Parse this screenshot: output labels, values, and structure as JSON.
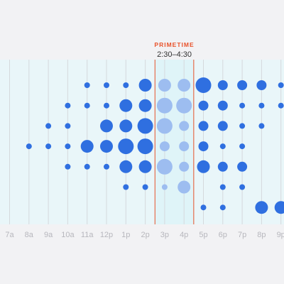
{
  "chart_data": {
    "type": "scatter",
    "title": "",
    "categories": [
      "7a",
      "8a",
      "9a",
      "10a",
      "11a",
      "12p",
      "1p",
      "2p",
      "3p",
      "4p",
      "5p",
      "6p",
      "7p",
      "8p",
      "9p"
    ],
    "rows": 7,
    "highlight": {
      "label": "PRIMETIME",
      "range": "2:30–4:30",
      "from": 7.5,
      "to": 9.5
    },
    "colors": {
      "dot": "#2f6fe0",
      "dot_primetime": "#9dbdf0",
      "highlight_line": "#e8522a",
      "highlight_fill": "#dff4f8",
      "grid": "#d5d9dd",
      "plot_fill": "#e9f6f9"
    },
    "points": [
      {
        "x": 4,
        "y": 0,
        "v": 2
      },
      {
        "x": 5,
        "y": 0,
        "v": 2
      },
      {
        "x": 6,
        "y": 0,
        "v": 2
      },
      {
        "x": 7,
        "y": 0,
        "v": 4
      },
      {
        "x": 8,
        "y": 0,
        "v": 4
      },
      {
        "x": 9,
        "y": 0,
        "v": 4
      },
      {
        "x": 10,
        "y": 0,
        "v": 5
      },
      {
        "x": 11,
        "y": 0,
        "v": 3
      },
      {
        "x": 12,
        "y": 0,
        "v": 3
      },
      {
        "x": 13,
        "y": 0,
        "v": 3
      },
      {
        "x": 14,
        "y": 0,
        "v": 2
      },
      {
        "x": 3,
        "y": 1,
        "v": 2
      },
      {
        "x": 4,
        "y": 1,
        "v": 2
      },
      {
        "x": 5,
        "y": 1,
        "v": 2
      },
      {
        "x": 6,
        "y": 1,
        "v": 4
      },
      {
        "x": 7,
        "y": 1,
        "v": 4
      },
      {
        "x": 8,
        "y": 1,
        "v": 5
      },
      {
        "x": 9,
        "y": 1,
        "v": 5
      },
      {
        "x": 10,
        "y": 1,
        "v": 3
      },
      {
        "x": 11,
        "y": 1,
        "v": 3
      },
      {
        "x": 12,
        "y": 1,
        "v": 2
      },
      {
        "x": 13,
        "y": 1,
        "v": 2
      },
      {
        "x": 14,
        "y": 1,
        "v": 2
      },
      {
        "x": 2,
        "y": 2,
        "v": 2
      },
      {
        "x": 3,
        "y": 2,
        "v": 2
      },
      {
        "x": 5,
        "y": 2,
        "v": 4
      },
      {
        "x": 6,
        "y": 2,
        "v": 4
      },
      {
        "x": 7,
        "y": 2,
        "v": 5
      },
      {
        "x": 8,
        "y": 2,
        "v": 5
      },
      {
        "x": 9,
        "y": 2,
        "v": 3
      },
      {
        "x": 10,
        "y": 2,
        "v": 3
      },
      {
        "x": 11,
        "y": 2,
        "v": 3
      },
      {
        "x": 12,
        "y": 2,
        "v": 2
      },
      {
        "x": 13,
        "y": 2,
        "v": 2
      },
      {
        "x": 1,
        "y": 3,
        "v": 2
      },
      {
        "x": 2,
        "y": 3,
        "v": 2
      },
      {
        "x": 3,
        "y": 3,
        "v": 2
      },
      {
        "x": 4,
        "y": 3,
        "v": 4
      },
      {
        "x": 5,
        "y": 3,
        "v": 4
      },
      {
        "x": 6,
        "y": 3,
        "v": 5
      },
      {
        "x": 7,
        "y": 3,
        "v": 5
      },
      {
        "x": 8,
        "y": 3,
        "v": 3
      },
      {
        "x": 9,
        "y": 3,
        "v": 3
      },
      {
        "x": 10,
        "y": 3,
        "v": 3
      },
      {
        "x": 11,
        "y": 3,
        "v": 2
      },
      {
        "x": 12,
        "y": 3,
        "v": 2
      },
      {
        "x": 3,
        "y": 4,
        "v": 2
      },
      {
        "x": 4,
        "y": 4,
        "v": 2
      },
      {
        "x": 5,
        "y": 4,
        "v": 2
      },
      {
        "x": 6,
        "y": 4,
        "v": 4
      },
      {
        "x": 7,
        "y": 4,
        "v": 4
      },
      {
        "x": 8,
        "y": 4,
        "v": 5
      },
      {
        "x": 9,
        "y": 4,
        "v": 3
      },
      {
        "x": 10,
        "y": 4,
        "v": 4
      },
      {
        "x": 11,
        "y": 4,
        "v": 3
      },
      {
        "x": 12,
        "y": 4,
        "v": 3
      },
      {
        "x": 6,
        "y": 5,
        "v": 2
      },
      {
        "x": 7,
        "y": 5,
        "v": 2
      },
      {
        "x": 8,
        "y": 5,
        "v": 2
      },
      {
        "x": 9,
        "y": 5,
        "v": 4
      },
      {
        "x": 11,
        "y": 5,
        "v": 2
      },
      {
        "x": 12,
        "y": 5,
        "v": 2
      },
      {
        "x": 10,
        "y": 6,
        "v": 2
      },
      {
        "x": 11,
        "y": 6,
        "v": 2
      },
      {
        "x": 13,
        "y": 6,
        "v": 4
      },
      {
        "x": 14,
        "y": 6,
        "v": 4
      }
    ]
  }
}
